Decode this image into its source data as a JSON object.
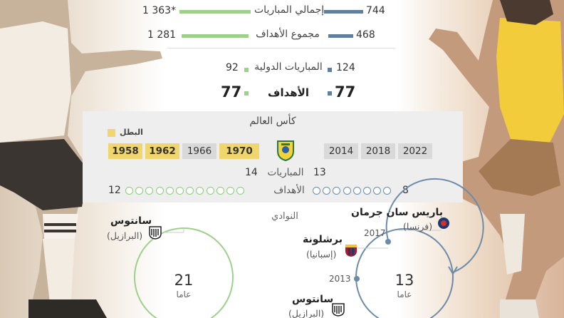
{
  "stats": {
    "total_matches": {
      "label": "إجمالي المباريات",
      "left": "1 363*",
      "right": "744"
    },
    "total_goals": {
      "label": "مجموع الأهداف",
      "left": "1 281",
      "right": "468"
    },
    "intl_matches": {
      "label": "المباريات الدولية",
      "left": "92",
      "right": "124"
    },
    "intl_goals": {
      "label": "الأهداف",
      "left": "77",
      "right": "77"
    }
  },
  "world_cup": {
    "title": "كأس العالم",
    "legend_champion": "البطل",
    "left_years": [
      {
        "year": "1958",
        "champion": true
      },
      {
        "year": "1962",
        "champion": true
      },
      {
        "year": "1966",
        "champion": false
      },
      {
        "year": "1970",
        "champion": true
      }
    ],
    "right_years": [
      {
        "year": "2014",
        "champion": false
      },
      {
        "year": "2018",
        "champion": false
      },
      {
        "year": "2022",
        "champion": false
      }
    ],
    "matches": {
      "label": "المباريات",
      "left": "14",
      "right": "13"
    },
    "goals": {
      "label": "الأهداف",
      "left": "12",
      "right": "8"
    }
  },
  "clubs": {
    "title": "النوادي",
    "left": {
      "years": "21",
      "years_unit": "عاما",
      "club": {
        "name": "سانتوس",
        "country": "(البرازيل)"
      }
    },
    "right": {
      "years": "13",
      "years_unit": "عاما",
      "clubs": [
        {
          "name": "باريس سان جرمان",
          "country": "(فرنسا)"
        },
        {
          "name": "برشلونة",
          "country": "(إسبانيا)"
        },
        {
          "name": "سانتوس",
          "country": "(البرازيل)"
        }
      ],
      "transfer_years": [
        "2017",
        "2013"
      ]
    }
  },
  "colors": {
    "green": "#9ed08b",
    "blue": "#5f7f9e",
    "champion": "#f0d66c",
    "panel": "#eeeeee"
  }
}
